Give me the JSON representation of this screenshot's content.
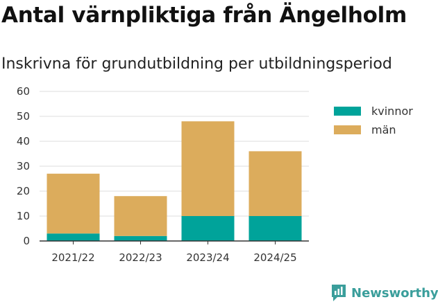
{
  "title": "Antal värnpliktiga från Ängelholm",
  "subtitle": "Inskrivna för grundutbildning per utbildningsperiod",
  "brand": "Newsworthy",
  "colors": {
    "kvinnor": "#00a39a",
    "man": "#dcac5c",
    "grid": "#dddddd",
    "axis": "#333333"
  },
  "chart_data": {
    "type": "bar",
    "stacked": true,
    "title": "Antal värnpliktiga från Ängelholm",
    "subtitle": "Inskrivna för grundutbildning per utbildningsperiod",
    "categories": [
      "2021/22",
      "2022/23",
      "2023/24",
      "2024/25"
    ],
    "series": [
      {
        "name": "kvinnor",
        "values": [
          3,
          2,
          10,
          10
        ]
      },
      {
        "name": "män",
        "values": [
          24,
          16,
          38,
          26
        ]
      }
    ],
    "ylim": [
      0,
      60
    ],
    "yticks": [
      0,
      10,
      20,
      30,
      40,
      50,
      60
    ],
    "grid": true,
    "legend_position": "right"
  }
}
